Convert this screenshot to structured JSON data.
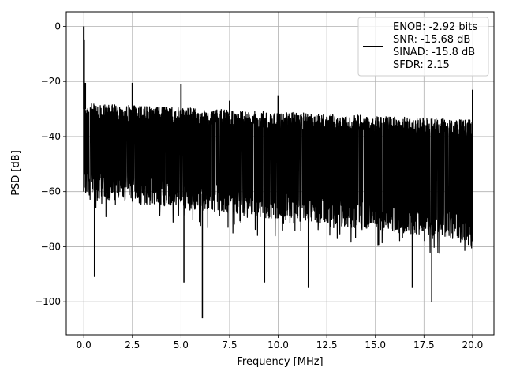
{
  "chart_data": {
    "type": "line",
    "xlabel": "Frequency [MHz]",
    "ylabel": "PSD [dB]",
    "xlim": [
      -0.9,
      21.1
    ],
    "ylim": [
      -112,
      5.3
    ],
    "xticks": [
      0.0,
      2.5,
      5.0,
      7.5,
      10.0,
      12.5,
      15.0,
      17.5,
      20.0
    ],
    "xtick_labels": [
      "0.0",
      "2.5",
      "5.0",
      "7.5",
      "10.0",
      "12.5",
      "15.0",
      "17.5",
      "20.0"
    ],
    "yticks": [
      0,
      -20,
      -40,
      -60,
      -80,
      -100
    ],
    "ytick_labels": [
      "0",
      "−20",
      "−40",
      "−60",
      "−80",
      "−100"
    ],
    "grid": true,
    "legend_position": "upper-right",
    "legend_lines": [
      "ENOB: -2.92 bits",
      "SNR: -15.68 dB",
      "SINAD: -15.8 dB",
      "SFDR: 2.15"
    ],
    "line_color": "#000000",
    "noise_floor": {
      "x_start": 0.0,
      "x_end": 20.0,
      "upper_envelope_db": [
        -28,
        -34
      ],
      "lower_typical_db": [
        -62,
        -78
      ],
      "lower_extreme_db": -106
    },
    "series": [
      {
        "x": [
          0.0,
          0.02,
          0.08,
          2.5,
          5.0,
          7.5,
          10.0,
          20.0
        ],
        "y": [
          0.0,
          -5.0,
          -20.5,
          -20.5,
          -21.0,
          -27.0,
          -25.0,
          -23.0
        ]
      }
    ],
    "deep_dips": {
      "x": [
        0.55,
        5.15,
        6.1,
        9.3,
        11.55,
        16.9,
        17.9
      ],
      "y": [
        -91,
        -93,
        -106,
        -93,
        -95,
        -95,
        -100
      ]
    }
  }
}
